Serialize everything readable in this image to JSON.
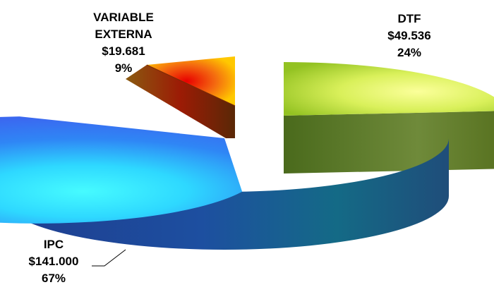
{
  "chart_data": {
    "type": "pie",
    "style": "3d-exploded",
    "currency_unit": "$",
    "slices": [
      {
        "name": "IPC",
        "value": 141000,
        "value_label": "$141.000",
        "percent_label": "67%",
        "color": "#2a8bf0"
      },
      {
        "name": "DTF",
        "value": 49536,
        "value_label": "$49.536",
        "percent_label": "24%",
        "color": "#c6e24a"
      },
      {
        "name": "VARIABLE EXTERNA",
        "value": 19681,
        "value_label": "$19.681",
        "percent_label": "9%",
        "color": "#f6a21a"
      }
    ],
    "legend": "none",
    "leader_line_on": [
      "IPC"
    ]
  }
}
